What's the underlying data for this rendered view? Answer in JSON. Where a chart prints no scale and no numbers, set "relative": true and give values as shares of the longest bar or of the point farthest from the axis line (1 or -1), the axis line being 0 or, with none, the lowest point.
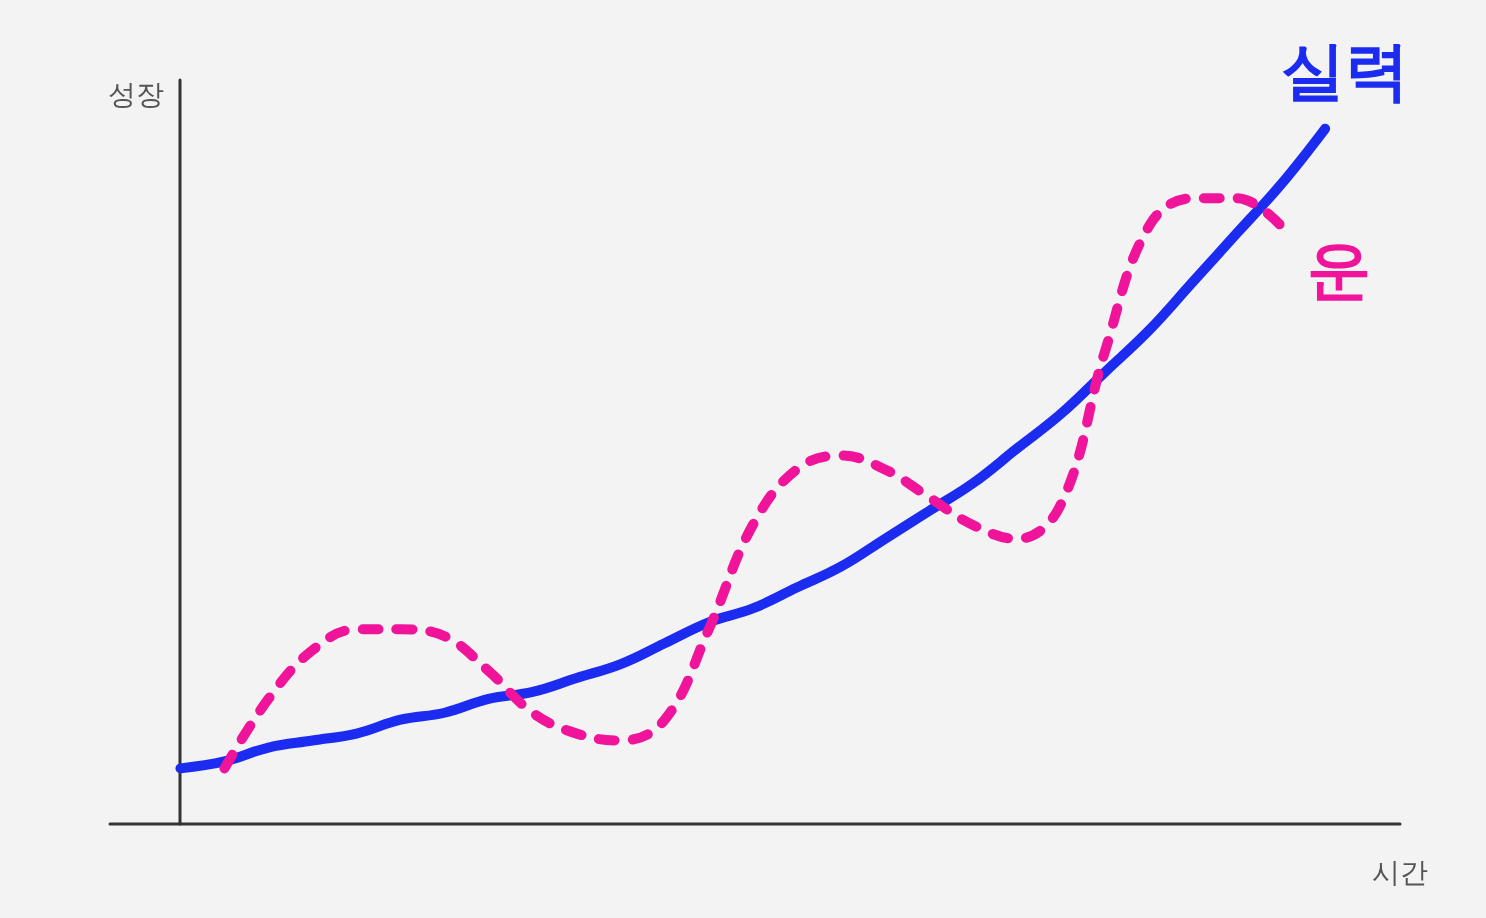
{
  "chart_data": {
    "type": "line",
    "relative": true,
    "xlabel": "시간",
    "ylabel": "성장",
    "legend": false,
    "grid": false,
    "marker": "none",
    "categories": [
      null,
      null,
      null,
      null,
      null,
      null,
      null,
      null,
      null,
      null,
      null,
      null,
      null,
      null,
      null,
      null,
      null,
      null,
      null,
      null,
      null,
      null,
      null,
      null,
      null,
      null,
      null
    ],
    "series": [
      {
        "name": "실력",
        "color": "#1b2cf0",
        "line_style": "solid",
        "values": [
          0.08,
          0.09,
          0.11,
          0.12,
          0.13,
          0.15,
          0.16,
          0.18,
          0.19,
          0.21,
          0.23,
          0.26,
          0.29,
          0.31,
          0.34,
          0.37,
          0.41,
          0.45,
          0.49,
          0.54,
          0.59,
          0.65,
          0.71,
          0.78,
          0.85,
          0.92,
          1
        ]
      },
      {
        "name": "운",
        "color": "#f0149a",
        "line_style": "dotted",
        "values": [
          null,
          0.08,
          0.18,
          0.25,
          0.28,
          0.28,
          0.27,
          0.22,
          0.16,
          0.13,
          0.12,
          0.15,
          0.28,
          0.43,
          0.51,
          0.53,
          0.51,
          0.47,
          0.43,
          0.41,
          0.46,
          0.68,
          0.86,
          0.9,
          0.9,
          0.86,
          null
        ]
      }
    ]
  }
}
